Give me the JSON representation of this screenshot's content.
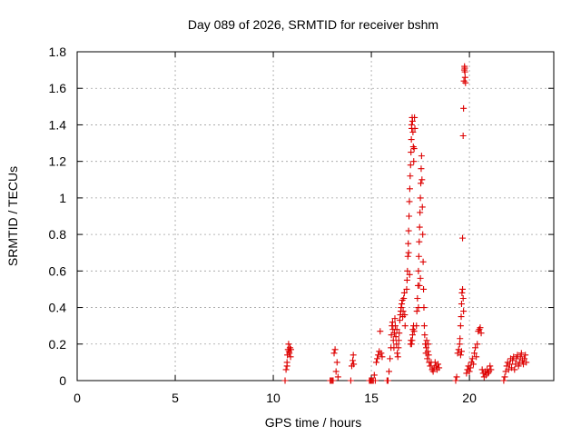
{
  "chart_data": {
    "type": "scatter",
    "title": "Day 089 of 2026, SRMTID for receiver bshm",
    "xlabel": "GPS time / hours",
    "ylabel": "SRMTID / TECUs",
    "xlim": [
      0,
      24.3
    ],
    "ylim": [
      0,
      1.8
    ],
    "xticks": [
      0,
      5,
      10,
      15,
      20
    ],
    "xtick_labels": [
      "0",
      "5",
      "10",
      "15",
      "20"
    ],
    "yticks": [
      0,
      0.2,
      0.4,
      0.6,
      0.8,
      1,
      1.2,
      1.4,
      1.6,
      1.8
    ],
    "ytick_labels": [
      "0",
      "0.2",
      "0.4",
      "0.6",
      "0.8",
      "1",
      "1.2",
      "1.4",
      "1.6",
      "1.8"
    ],
    "grid": true,
    "marker": "+",
    "color": "#dd0000",
    "series": [
      {
        "name": "SRMTID",
        "points": [
          [
            10.6,
            0.0
          ],
          [
            10.65,
            0.06
          ],
          [
            10.7,
            0.1
          ],
          [
            10.72,
            0.14
          ],
          [
            10.75,
            0.17
          ],
          [
            10.78,
            0.2
          ],
          [
            10.8,
            0.16
          ],
          [
            10.82,
            0.15
          ],
          [
            10.85,
            0.18
          ],
          [
            10.88,
            0.13
          ],
          [
            10.9,
            0.17
          ],
          [
            10.7,
            0.08
          ],
          [
            12.9,
            0.0
          ],
          [
            12.95,
            0.0
          ],
          [
            13.0,
            0.0
          ],
          [
            13.05,
            0.0
          ],
          [
            13.1,
            0.15
          ],
          [
            13.15,
            0.17
          ],
          [
            13.2,
            0.05
          ],
          [
            13.25,
            0.1
          ],
          [
            13.3,
            0.02
          ],
          [
            13.95,
            0.0
          ],
          [
            14.0,
            0.08
          ],
          [
            14.05,
            0.11
          ],
          [
            14.08,
            0.14
          ],
          [
            14.1,
            0.09
          ],
          [
            14.9,
            0.0
          ],
          [
            14.95,
            0.0
          ],
          [
            15.0,
            0.0
          ],
          [
            15.05,
            0.0
          ],
          [
            15.1,
            0.0
          ],
          [
            15.15,
            0.03
          ],
          [
            15.2,
            0.0
          ],
          [
            15.25,
            0.1
          ],
          [
            15.3,
            0.12
          ],
          [
            15.35,
            0.14
          ],
          [
            15.4,
            0.16
          ],
          [
            15.45,
            0.27
          ],
          [
            15.5,
            0.15
          ],
          [
            15.55,
            0.13
          ],
          [
            15.8,
            0.0
          ],
          [
            15.85,
            0.0
          ],
          [
            15.9,
            0.05
          ],
          [
            15.95,
            0.12
          ],
          [
            16.0,
            0.18
          ],
          [
            16.02,
            0.25
          ],
          [
            16.05,
            0.3
          ],
          [
            16.08,
            0.32
          ],
          [
            16.1,
            0.28
          ],
          [
            16.12,
            0.22
          ],
          [
            16.15,
            0.18
          ],
          [
            16.18,
            0.26
          ],
          [
            16.2,
            0.34
          ],
          [
            16.22,
            0.3
          ],
          [
            16.25,
            0.24
          ],
          [
            16.28,
            0.2
          ],
          [
            16.3,
            0.28
          ],
          [
            16.32,
            0.15
          ],
          [
            16.35,
            0.13
          ],
          [
            16.38,
            0.18
          ],
          [
            16.4,
            0.22
          ],
          [
            16.42,
            0.26
          ],
          [
            16.45,
            0.33
          ],
          [
            16.48,
            0.36
          ],
          [
            16.5,
            0.38
          ],
          [
            16.52,
            0.4
          ],
          [
            16.55,
            0.42
          ],
          [
            16.58,
            0.44
          ],
          [
            16.6,
            0.35
          ],
          [
            16.62,
            0.38
          ],
          [
            16.65,
            0.45
          ],
          [
            16.68,
            0.48
          ],
          [
            16.7,
            0.36
          ],
          [
            16.72,
            0.3
          ],
          [
            16.8,
            0.5
          ],
          [
            16.82,
            0.55
          ],
          [
            16.84,
            0.6
          ],
          [
            16.86,
            0.68
          ],
          [
            16.88,
            0.75
          ],
          [
            16.9,
            0.82
          ],
          [
            16.92,
            0.9
          ],
          [
            16.94,
            0.98
          ],
          [
            16.96,
            1.05
          ],
          [
            16.98,
            1.12
          ],
          [
            17.0,
            1.18
          ],
          [
            17.02,
            1.25
          ],
          [
            17.04,
            1.32
          ],
          [
            17.06,
            1.38
          ],
          [
            17.08,
            1.44
          ],
          [
            17.1,
            1.42
          ],
          [
            17.12,
            1.36
          ],
          [
            17.14,
            1.28
          ],
          [
            17.16,
            1.2
          ],
          [
            17.18,
            1.27
          ],
          [
            17.2,
            1.44
          ],
          [
            17.22,
            1.38
          ],
          [
            17.05,
            1.4
          ],
          [
            16.9,
            0.7
          ],
          [
            16.95,
            0.58
          ],
          [
            17.0,
            0.2
          ],
          [
            17.02,
            0.22
          ],
          [
            17.05,
            0.2
          ],
          [
            17.08,
            0.22
          ],
          [
            17.1,
            0.25
          ],
          [
            17.12,
            0.28
          ],
          [
            17.15,
            0.3
          ],
          [
            17.18,
            0.27
          ],
          [
            17.3,
            0.3
          ],
          [
            17.32,
            0.38
          ],
          [
            17.35,
            0.45
          ],
          [
            17.38,
            0.52
          ],
          [
            17.4,
            0.6
          ],
          [
            17.42,
            0.68
          ],
          [
            17.44,
            0.76
          ],
          [
            17.46,
            0.84
          ],
          [
            17.48,
            0.92
          ],
          [
            17.5,
            1.0
          ],
          [
            17.52,
            1.08
          ],
          [
            17.54,
            1.16
          ],
          [
            17.56,
            1.23
          ],
          [
            17.58,
            1.1
          ],
          [
            17.6,
            0.95
          ],
          [
            17.62,
            0.8
          ],
          [
            17.64,
            0.65
          ],
          [
            17.66,
            0.5
          ],
          [
            17.68,
            0.4
          ],
          [
            17.7,
            0.3
          ],
          [
            17.72,
            0.25
          ],
          [
            17.75,
            0.2
          ],
          [
            17.78,
            0.15
          ],
          [
            17.8,
            0.18
          ],
          [
            17.82,
            0.22
          ],
          [
            17.85,
            0.12
          ],
          [
            17.88,
            0.16
          ],
          [
            17.9,
            0.2
          ],
          [
            17.92,
            0.14
          ],
          [
            17.95,
            0.1
          ],
          [
            17.4,
            0.4
          ],
          [
            17.45,
            0.52
          ],
          [
            17.5,
            0.56
          ],
          [
            18.0,
            0.08
          ],
          [
            18.05,
            0.1
          ],
          [
            18.1,
            0.06
          ],
          [
            18.15,
            0.05
          ],
          [
            18.2,
            0.07
          ],
          [
            18.25,
            0.1
          ],
          [
            18.3,
            0.08
          ],
          [
            18.35,
            0.06
          ],
          [
            18.4,
            0.09
          ],
          [
            18.45,
            0.07
          ],
          [
            19.3,
            0.0
          ],
          [
            19.35,
            0.02
          ],
          [
            19.4,
            0.15
          ],
          [
            19.45,
            0.17
          ],
          [
            19.5,
            0.2
          ],
          [
            19.52,
            0.23
          ],
          [
            19.55,
            0.3
          ],
          [
            19.58,
            0.35
          ],
          [
            19.6,
            0.42
          ],
          [
            19.62,
            0.48
          ],
          [
            19.65,
            0.5
          ],
          [
            19.68,
            0.45
          ],
          [
            19.7,
            0.38
          ],
          [
            19.55,
            0.14
          ],
          [
            19.6,
            0.16
          ],
          [
            19.65,
            0.78
          ],
          [
            19.68,
            1.34
          ],
          [
            19.7,
            1.49
          ],
          [
            19.72,
            1.64
          ],
          [
            19.74,
            1.7
          ],
          [
            19.75,
            1.72
          ],
          [
            19.77,
            1.69
          ],
          [
            19.78,
            1.66
          ],
          [
            19.8,
            1.63
          ],
          [
            19.76,
            1.71
          ],
          [
            19.85,
            0.04
          ],
          [
            19.9,
            0.06
          ],
          [
            19.95,
            0.08
          ],
          [
            20.0,
            0.05
          ],
          [
            20.05,
            0.07
          ],
          [
            20.1,
            0.1
          ],
          [
            20.15,
            0.12
          ],
          [
            20.2,
            0.09
          ],
          [
            20.25,
            0.15
          ],
          [
            20.3,
            0.18
          ],
          [
            20.35,
            0.13
          ],
          [
            20.4,
            0.2
          ],
          [
            20.45,
            0.27
          ],
          [
            20.5,
            0.28
          ],
          [
            20.55,
            0.29
          ],
          [
            20.6,
            0.26
          ],
          [
            20.65,
            0.06
          ],
          [
            20.7,
            0.04
          ],
          [
            20.75,
            0.02
          ],
          [
            20.8,
            0.05
          ],
          [
            20.85,
            0.03
          ],
          [
            20.9,
            0.06
          ],
          [
            20.95,
            0.04
          ],
          [
            21.0,
            0.05
          ],
          [
            21.05,
            0.08
          ],
          [
            21.1,
            0.06
          ],
          [
            21.75,
            0.0
          ],
          [
            21.8,
            0.02
          ],
          [
            21.85,
            0.05
          ],
          [
            21.9,
            0.08
          ],
          [
            21.95,
            0.1
          ],
          [
            22.0,
            0.06
          ],
          [
            22.05,
            0.09
          ],
          [
            22.1,
            0.12
          ],
          [
            22.15,
            0.07
          ],
          [
            22.2,
            0.11
          ],
          [
            22.25,
            0.13
          ],
          [
            22.3,
            0.06
          ],
          [
            22.35,
            0.09
          ],
          [
            22.4,
            0.12
          ],
          [
            22.45,
            0.14
          ],
          [
            22.5,
            0.08
          ],
          [
            22.55,
            0.1
          ],
          [
            22.6,
            0.13
          ],
          [
            22.65,
            0.15
          ],
          [
            22.7,
            0.11
          ],
          [
            22.75,
            0.09
          ],
          [
            22.8,
            0.12
          ],
          [
            22.85,
            0.14
          ],
          [
            22.9,
            0.1
          ]
        ]
      }
    ]
  }
}
